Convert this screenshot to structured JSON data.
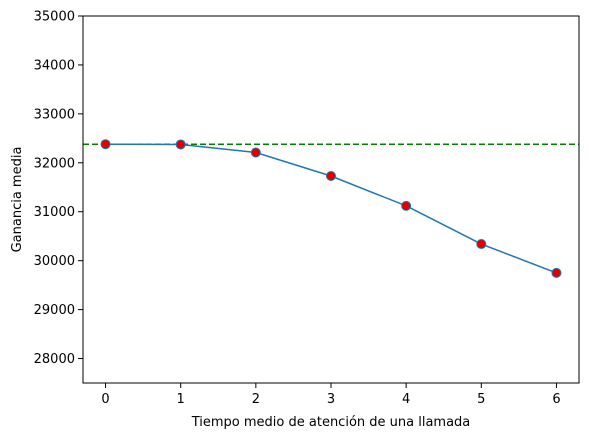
{
  "chart_data": {
    "type": "line",
    "title": "",
    "xlabel": "Tiempo medio de atención de una llamada",
    "ylabel": "Ganancia media",
    "xlim": [
      -0.3,
      6.3
    ],
    "ylim": [
      27500,
      35000
    ],
    "grid": false,
    "x_ticks": [
      0,
      1,
      2,
      3,
      4,
      5,
      6
    ],
    "x_tick_labels": [
      "0",
      "1",
      "2",
      "3",
      "4",
      "5",
      "6"
    ],
    "y_ticks": [
      28000,
      29000,
      30000,
      31000,
      32000,
      33000,
      34000,
      35000
    ],
    "y_tick_labels": [
      "28000",
      "29000",
      "30000",
      "31000",
      "32000",
      "33000",
      "34000",
      "35000"
    ],
    "series": [
      {
        "x": [
          0,
          1,
          2,
          3,
          4,
          5,
          6
        ],
        "values": [
          32380,
          32375,
          32210,
          31730,
          31120,
          30340,
          29750
        ],
        "line_color": "#1f77b4",
        "marker_color": "#e00000"
      }
    ],
    "reference_line": {
      "y": 32380,
      "color": "#008000",
      "style": "dashed"
    }
  }
}
